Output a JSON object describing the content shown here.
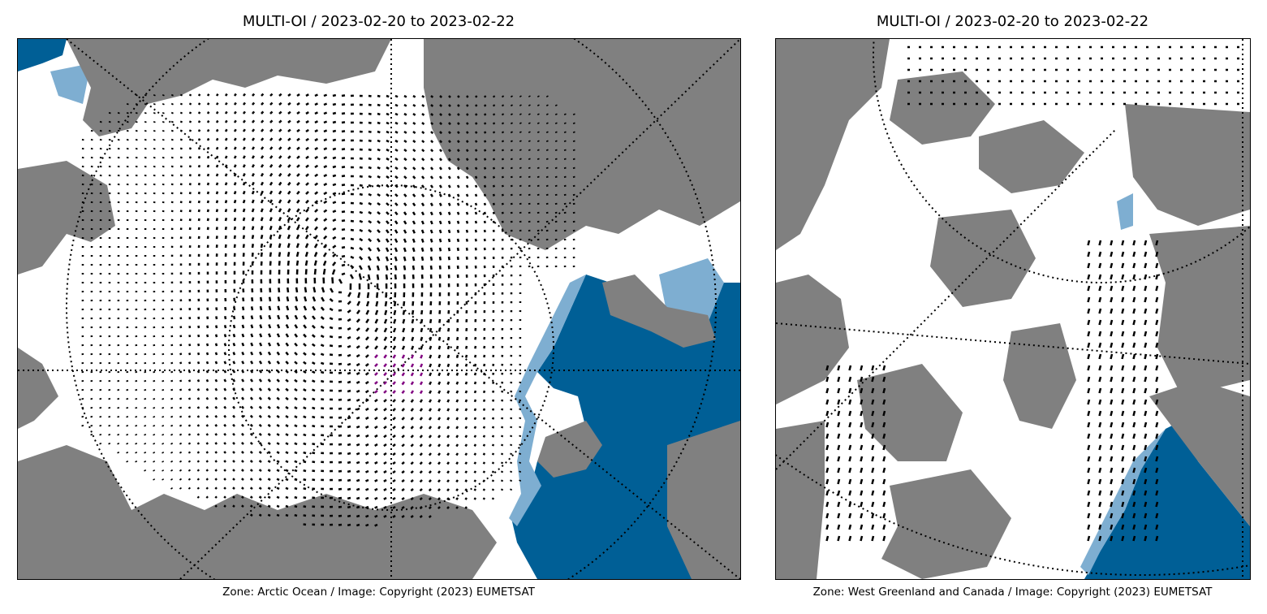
{
  "panels": [
    {
      "title": "MULTI-OI / 2023-02-20 to 2023-02-22",
      "caption": "Zone: Arctic Ocean / Image: Copyright (2023) EUMETSAT"
    },
    {
      "title": "MULTI-OI / 2023-02-20 to 2023-02-22",
      "caption": "Zone: West Greenland and Canada / Image: Copyright (2023) EUMETSAT"
    }
  ],
  "colors": {
    "land": "#808080",
    "sea_ice": "#ffffff",
    "open_water": "#005f96",
    "ice_edge": "#7eaed1",
    "arrow_default": "#000000",
    "arrow_flagged": "#800080",
    "graticule": "#000000"
  }
}
